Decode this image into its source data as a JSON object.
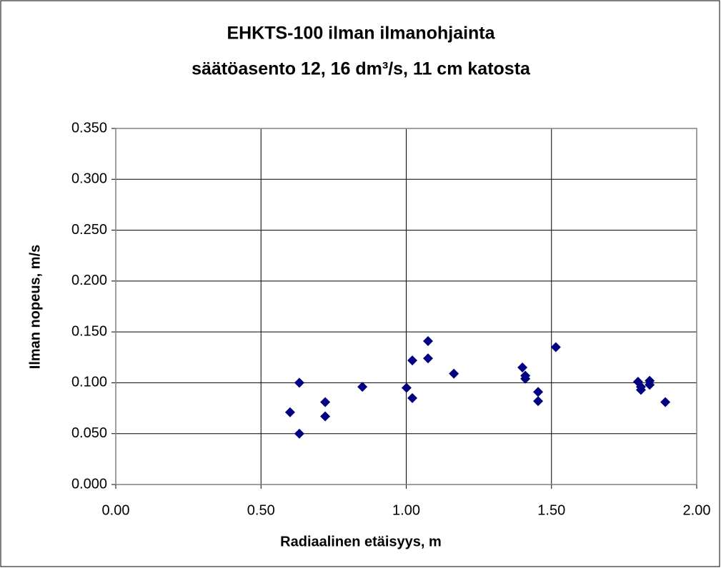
{
  "chart_data": {
    "type": "scatter",
    "title": [
      "EHKTS-100 ilman ilmanohjainta",
      "säätöasento 12, 16 dm³/s, 11 cm katosta"
    ],
    "xlabel": "Radiaalinen etäisyys, m",
    "ylabel": "Ilman nopeus, m/s",
    "color": "#000080",
    "marker": "diamond",
    "grid": true,
    "xlim": [
      0,
      2
    ],
    "ylim": [
      0,
      0.35
    ],
    "xticks": [
      {
        "value": 0,
        "label": "0.00"
      },
      {
        "value": 0.5,
        "label": "0.50"
      },
      {
        "value": 1,
        "label": "1.00"
      },
      {
        "value": 1.5,
        "label": "1.50"
      },
      {
        "value": 2,
        "label": "2.00"
      }
    ],
    "yticks": [
      {
        "value": 0,
        "label": "0.000"
      },
      {
        "value": 0.05,
        "label": "0.050"
      },
      {
        "value": 0.1,
        "label": "0.100"
      },
      {
        "value": 0.15,
        "label": "0.150"
      },
      {
        "value": 0.2,
        "label": "0.200"
      },
      {
        "value": 0.25,
        "label": "0.250"
      },
      {
        "value": 0.3,
        "label": "0.300"
      },
      {
        "value": 0.35,
        "label": "0.350"
      }
    ],
    "x": [
      0.6,
      0.632,
      0.632,
      0.721,
      0.721,
      0.849,
      1.001,
      1.021,
      1.021,
      1.075,
      1.075,
      1.164,
      1.4,
      1.41,
      1.41,
      1.454,
      1.454,
      1.515,
      1.798,
      1.808,
      1.808,
      1.838,
      1.838,
      1.892
    ],
    "values": [
      0.071,
      0.1,
      0.05,
      0.081,
      0.067,
      0.096,
      0.095,
      0.122,
      0.085,
      0.141,
      0.124,
      0.109,
      0.115,
      0.107,
      0.104,
      0.091,
      0.082,
      0.135,
      0.101,
      0.093,
      0.096,
      0.102,
      0.098,
      0.081
    ]
  }
}
